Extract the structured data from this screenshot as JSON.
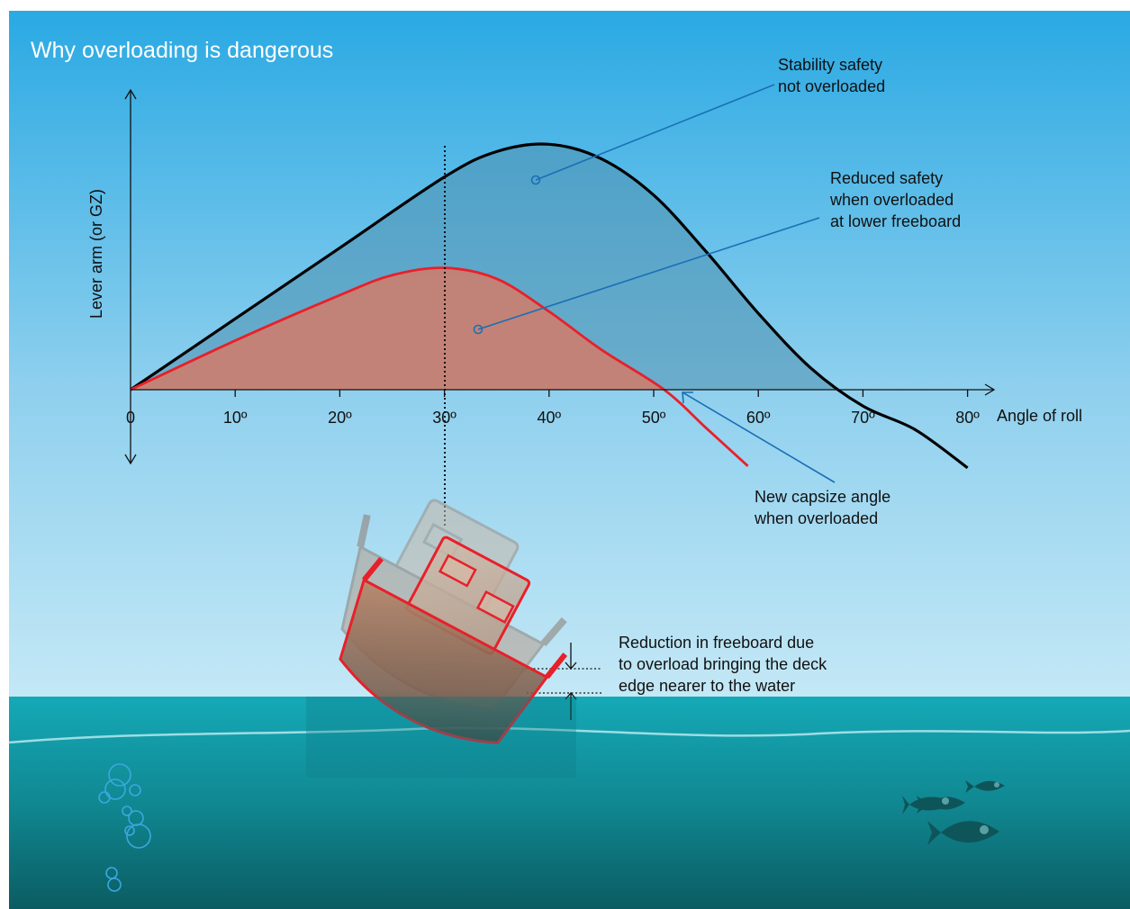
{
  "title": "Why overloading is dangerous",
  "y_axis_label": "Lever arm (or GZ)",
  "x_axis_label": "Angle of roll",
  "x_ticks": [
    "0",
    "10º",
    "20º",
    "30º",
    "40º",
    "50º",
    "60º",
    "70º",
    "80º"
  ],
  "annotations": {
    "not_overloaded": [
      "Stability safety",
      "not overloaded"
    ],
    "overloaded": [
      "Reduced safety",
      "when overloaded",
      "at lower freeboard"
    ],
    "capsize": [
      "New capsize angle",
      "when overloaded"
    ],
    "freeboard": [
      "Reduction in freeboard due",
      "to overload bringing the deck",
      "edge nearer to the water"
    ]
  },
  "colors": {
    "sky_top": "#2aa9e3",
    "sky_bottom": "#bfe6f5",
    "sea_top": "#14a6b4",
    "sea_bottom": "#0d5d63",
    "normal_curve": "#000000",
    "overloaded_curve": "#e8202a",
    "leader_line": "#1a6fb5"
  },
  "chart_data": {
    "type": "line",
    "xlabel": "Angle of roll",
    "ylabel": "Lever arm (or GZ)",
    "xlim": [
      0,
      80
    ],
    "x_ticks": [
      0,
      10,
      20,
      30,
      40,
      50,
      60,
      70,
      80
    ],
    "y_ticks_labeled": false,
    "series": [
      {
        "key": "not_overloaded",
        "x": [
          0,
          10,
          20,
          30,
          35,
          40,
          45,
          50,
          55,
          60,
          65,
          70,
          75,
          80
        ],
        "y": [
          0,
          0.39,
          0.78,
          1.17,
          1.31,
          1.35,
          1.27,
          1.07,
          0.76,
          0.42,
          0.12,
          -0.09,
          -0.22,
          -0.43
        ]
      },
      {
        "key": "overloaded",
        "x": [
          0,
          10,
          20,
          25,
          30,
          35,
          40,
          45,
          51,
          55,
          59
        ],
        "y": [
          0,
          0.27,
          0.52,
          0.63,
          0.67,
          0.61,
          0.43,
          0.22,
          0,
          -0.21,
          -0.42
        ]
      }
    ]
  }
}
